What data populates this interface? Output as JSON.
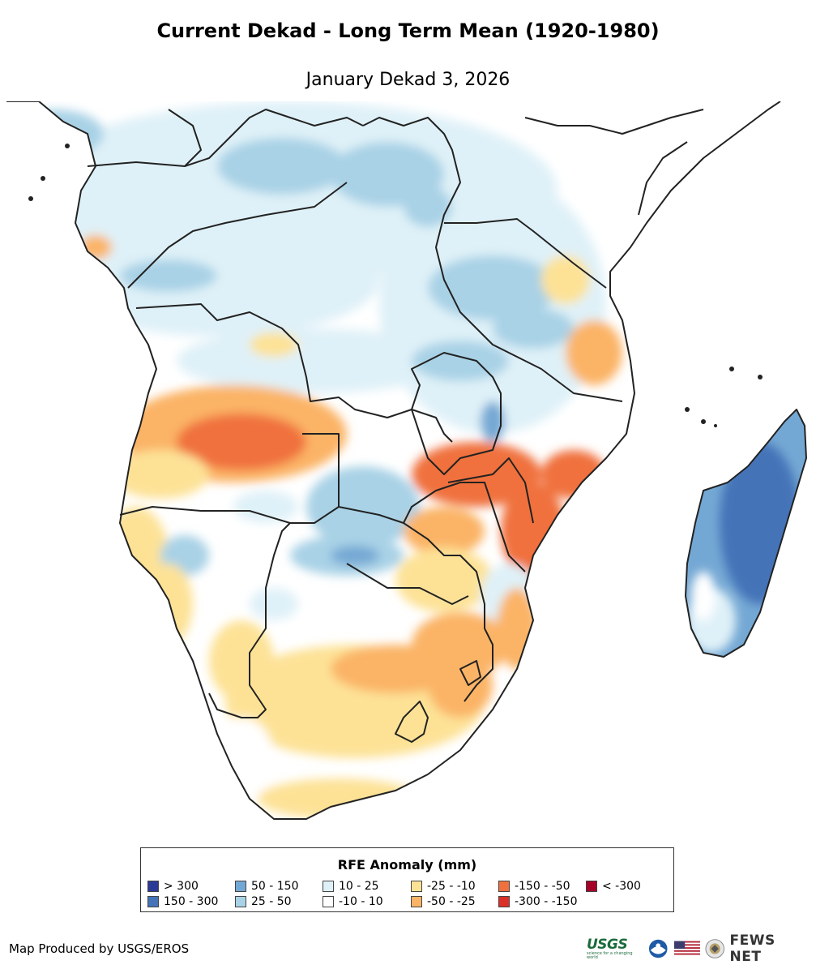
{
  "map": {
    "title": "Current Dekad - Long Term Mean (1920-1980)",
    "subtitle": "January Dekad 3, 2026"
  },
  "legend": {
    "title": "RFE Anomaly (mm)",
    "items": [
      {
        "label": "> 300",
        "color": "#2c3a97"
      },
      {
        "label": "150 - 300",
        "color": "#4473b8"
      },
      {
        "label": "50 - 150",
        "color": "#74a8d4"
      },
      {
        "label": "25 - 50",
        "color": "#a9d2e6"
      },
      {
        "label": "10 - 25",
        "color": "#dff1f8"
      },
      {
        "label": "-10 - 10",
        "color": "#ffffff"
      },
      {
        "label": "-25 - -10",
        "color": "#fde296"
      },
      {
        "label": "-50 - -25",
        "color": "#fbb466"
      },
      {
        "label": "-150 - -50",
        "color": "#f0713e"
      },
      {
        "label": "-300 - -150",
        "color": "#db2f27"
      },
      {
        "label": "< -300",
        "color": "#a50026"
      }
    ]
  },
  "footer": {
    "credit": "Map Produced by USGS/EROS",
    "logo_usgs": "USGS",
    "logo_usgs_tagline": "science for a changing world",
    "logo_fews": "FEWS NET"
  },
  "icons": [
    "usgs-logo",
    "noaa-logo-icon",
    "us-flag-icon",
    "state-department-seal-icon"
  ]
}
